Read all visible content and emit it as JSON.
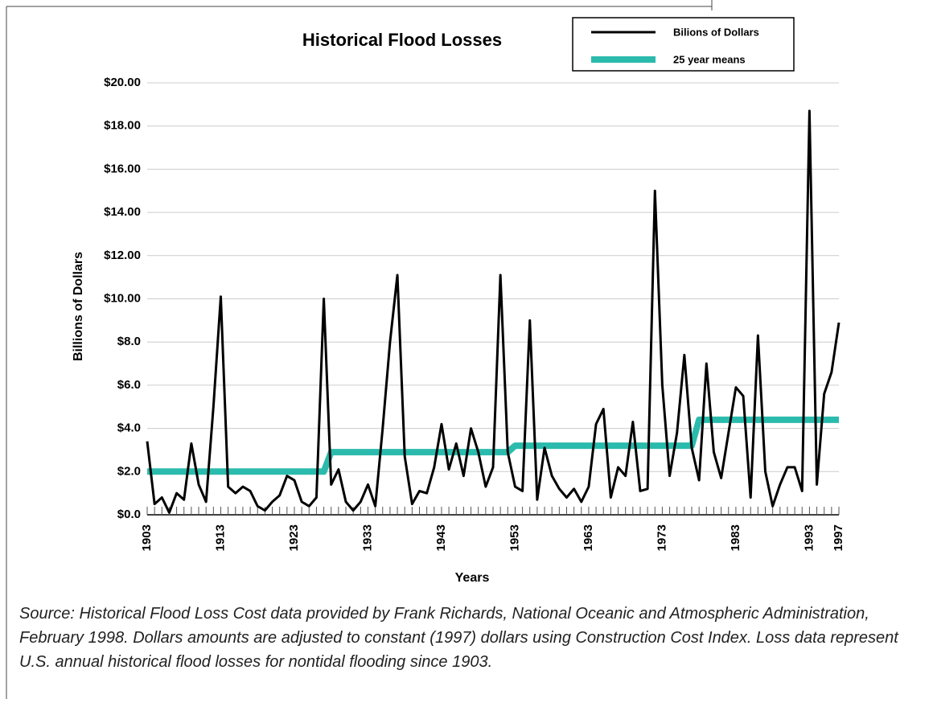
{
  "chart_data": {
    "type": "line",
    "title": "Historical Flood Losses",
    "xlabel": "Years",
    "ylabel": "Billions of Dollars",
    "note": "Source: Historical Flood Loss Cost data provided by Frank Richards, National Oceanic and Atmospheric Administration, February 1998. Dollars amounts are adjusted to constant (1997) dollars using Construction Cost Index. Loss data represent U.S. annual historical flood losses for nontidal flooding since 1903.",
    "x": [
      1903,
      1904,
      1905,
      1906,
      1907,
      1908,
      1909,
      1910,
      1911,
      1912,
      1913,
      1914,
      1915,
      1916,
      1917,
      1918,
      1919,
      1920,
      1921,
      1922,
      1923,
      1924,
      1925,
      1926,
      1927,
      1928,
      1929,
      1930,
      1931,
      1932,
      1933,
      1934,
      1935,
      1936,
      1937,
      1938,
      1939,
      1940,
      1941,
      1942,
      1943,
      1944,
      1945,
      1946,
      1947,
      1948,
      1949,
      1950,
      1951,
      1952,
      1953,
      1954,
      1955,
      1956,
      1957,
      1958,
      1959,
      1960,
      1961,
      1962,
      1963,
      1964,
      1965,
      1966,
      1967,
      1968,
      1969,
      1970,
      1971,
      1972,
      1973,
      1974,
      1975,
      1976,
      1977,
      1978,
      1979,
      1980,
      1981,
      1982,
      1983,
      1984,
      1985,
      1986,
      1987,
      1988,
      1989,
      1990,
      1991,
      1992,
      1993,
      1994,
      1995,
      1996,
      1997
    ],
    "series": [
      {
        "name": "Bilions of Dollars",
        "color": "#000000",
        "width": 3,
        "values": [
          3.4,
          0.5,
          0.8,
          0.1,
          1.0,
          0.7,
          3.3,
          1.4,
          0.6,
          5.0,
          10.1,
          1.3,
          1.0,
          1.3,
          1.1,
          0.4,
          0.2,
          0.6,
          0.9,
          1.8,
          1.6,
          0.6,
          0.4,
          0.8,
          10.0,
          1.4,
          2.1,
          0.6,
          0.2,
          0.6,
          1.4,
          0.4,
          4.0,
          8.0,
          11.1,
          2.7,
          0.5,
          1.1,
          1.0,
          2.2,
          4.2,
          2.1,
          3.3,
          1.8,
          4.0,
          2.9,
          1.3,
          2.2,
          11.1,
          2.9,
          1.3,
          1.1,
          9.0,
          0.7,
          3.1,
          1.8,
          1.2,
          0.8,
          1.2,
          0.6,
          1.3,
          4.2,
          4.9,
          0.8,
          2.2,
          1.8,
          4.3,
          1.1,
          1.2,
          15.0,
          6.0,
          1.8,
          3.8,
          7.4,
          3.1,
          1.6,
          7.0,
          2.9,
          1.7,
          3.8,
          5.9,
          5.5,
          0.8,
          8.3,
          2.0,
          0.4,
          1.4,
          2.2,
          2.2,
          1.1,
          18.7,
          1.4,
          5.6,
          6.6,
          8.9
        ]
      },
      {
        "name": "25 year means",
        "color": "#2bbbad",
        "width": 8,
        "values": [
          2.0,
          2.0,
          2.0,
          2.0,
          2.0,
          2.0,
          2.0,
          2.0,
          2.0,
          2.0,
          2.0,
          2.0,
          2.0,
          2.0,
          2.0,
          2.0,
          2.0,
          2.0,
          2.0,
          2.0,
          2.0,
          2.0,
          2.0,
          2.0,
          2.0,
          2.9,
          2.9,
          2.9,
          2.9,
          2.9,
          2.9,
          2.9,
          2.9,
          2.9,
          2.9,
          2.9,
          2.9,
          2.9,
          2.9,
          2.9,
          2.9,
          2.9,
          2.9,
          2.9,
          2.9,
          2.9,
          2.9,
          2.9,
          2.9,
          2.9,
          3.2,
          3.2,
          3.2,
          3.2,
          3.2,
          3.2,
          3.2,
          3.2,
          3.2,
          3.2,
          3.2,
          3.2,
          3.2,
          3.2,
          3.2,
          3.2,
          3.2,
          3.2,
          3.2,
          3.2,
          3.2,
          3.2,
          3.2,
          3.2,
          3.2,
          4.4,
          4.4,
          4.4,
          4.4,
          4.4,
          4.4,
          4.4,
          4.4,
          4.4,
          4.4,
          4.4,
          4.4,
          4.4,
          4.4,
          4.4,
          4.4,
          4.4,
          4.4,
          4.4,
          4.4
        ]
      }
    ],
    "xlim": [
      1903,
      1997
    ],
    "xticks": [
      1903,
      1913,
      1923,
      1933,
      1943,
      1953,
      1963,
      1973,
      1983,
      1993,
      1997
    ],
    "ylim": [
      0,
      20
    ],
    "yticks": [
      {
        "value": 0,
        "label": "$0.0"
      },
      {
        "value": 2,
        "label": "$2.0"
      },
      {
        "value": 4,
        "label": "$4.0"
      },
      {
        "value": 6,
        "label": "$6.0"
      },
      {
        "value": 8,
        "label": "$8.0"
      },
      {
        "value": 10,
        "label": "$10.00"
      },
      {
        "value": 12,
        "label": "$12.00"
      },
      {
        "value": 14,
        "label": "$14.00"
      },
      {
        "value": 16,
        "label": "$16.00"
      },
      {
        "value": 18,
        "label": "$18.00"
      },
      {
        "value": 20,
        "label": "$20.00"
      }
    ],
    "grid": true,
    "legend": "top-right"
  }
}
